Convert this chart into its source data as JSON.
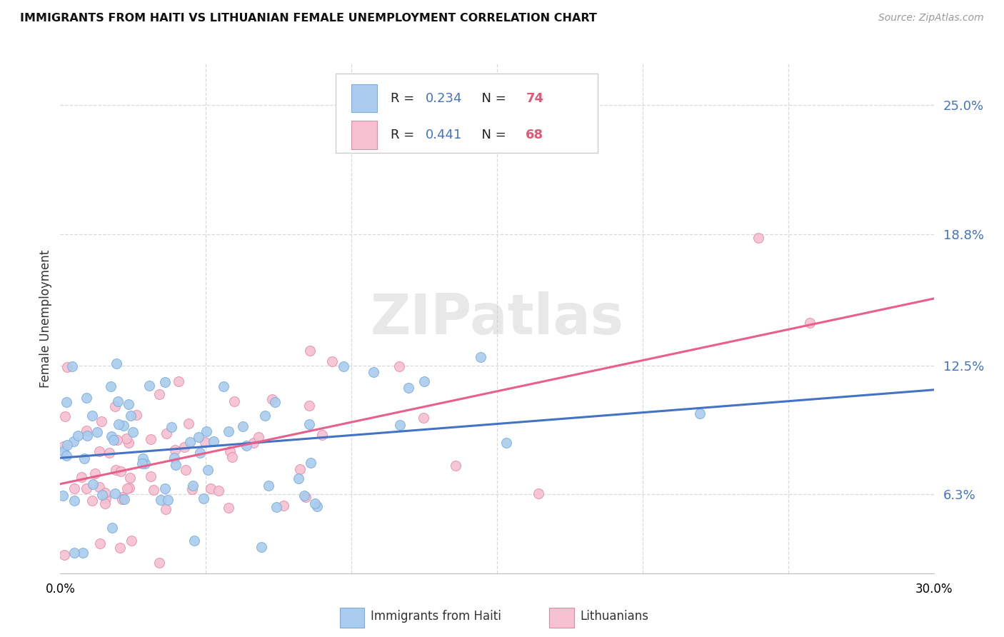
{
  "title": "IMMIGRANTS FROM HAITI VS LITHUANIAN FEMALE UNEMPLOYMENT CORRELATION CHART",
  "source": "Source: ZipAtlas.com",
  "ylabel": "Female Unemployment",
  "ytick_values": [
    6.3,
    12.5,
    18.8,
    25.0
  ],
  "ytick_labels": [
    "6.3%",
    "12.5%",
    "18.8%",
    "25.0%"
  ],
  "xmin": 0.0,
  "xmax": 30.0,
  "ymin": 2.5,
  "ymax": 27.0,
  "haiti_color": "#aaccee",
  "haiti_edge_color": "#7aabdd",
  "lith_color": "#f5c0d0",
  "lith_edge_color": "#e888a8",
  "haiti_line_color": "#4472c4",
  "lith_line_color": "#e8608a",
  "tick_label_color": "#4472c4",
  "n_label_color": "#e05878",
  "watermark": "ZIPatlas",
  "grid_color": "#d8d8e0",
  "legend_r1": "R = 0.234",
  "legend_n1": "N = 74",
  "legend_r2": "R = 0.441",
  "legend_n2": "N = 68",
  "legend_label1": "Immigrants from Haiti",
  "legend_label2": "Lithuanians"
}
